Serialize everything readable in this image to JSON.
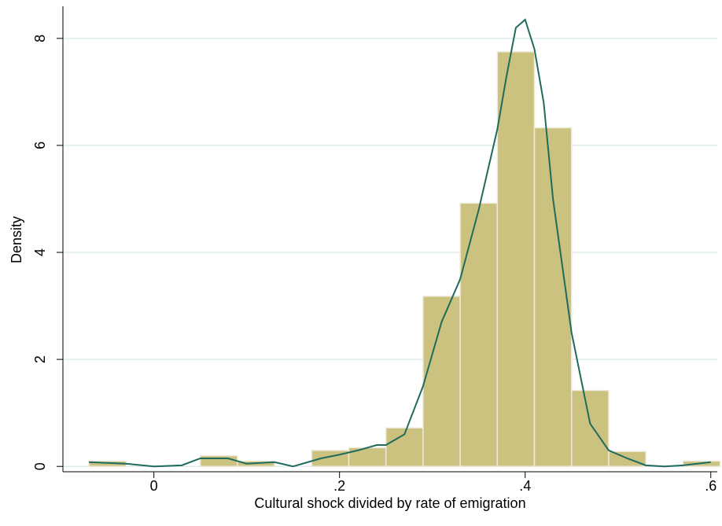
{
  "chart_data": {
    "type": "histogram",
    "xlabel": "Cultural shock divided by rate of emigration",
    "ylabel": "Density",
    "bins": [
      -0.07,
      -0.03,
      0.01,
      0.05,
      0.09,
      0.13,
      0.17,
      0.21,
      0.25,
      0.29,
      0.33,
      0.37,
      0.41,
      0.45,
      0.49,
      0.53,
      0.57,
      0.61
    ],
    "values": [
      0.1,
      0,
      0,
      0.2,
      0.1,
      0,
      0.3,
      0.35,
      0.72,
      3.18,
      4.92,
      7.75,
      6.33,
      1.42,
      0.28,
      0,
      0.1
    ],
    "color": "#cbc27f",
    "density_line": {
      "color": "#1f6b5d",
      "x": [
        -0.07,
        -0.03,
        0,
        0.03,
        0.05,
        0.08,
        0.1,
        0.13,
        0.15,
        0.18,
        0.2,
        0.22,
        0.24,
        0.25,
        0.27,
        0.29,
        0.31,
        0.33,
        0.35,
        0.37,
        0.38,
        0.39,
        0.4,
        0.41,
        0.42,
        0.43,
        0.45,
        0.47,
        0.49,
        0.51,
        0.53,
        0.55,
        0.57,
        0.6
      ],
      "values": [
        0.08,
        0.05,
        0,
        0.02,
        0.15,
        0.15,
        0.05,
        0.08,
        0,
        0.15,
        0.22,
        0.3,
        0.4,
        0.4,
        0.6,
        1.5,
        2.7,
        3.5,
        4.8,
        6.3,
        7.3,
        8.2,
        8.35,
        7.8,
        6.8,
        5.0,
        2.5,
        0.8,
        0.3,
        0.15,
        0.02,
        0,
        0.02,
        0.08
      ]
    },
    "xlim": [
      -0.098,
      0.607
    ],
    "ylim": [
      -0.1,
      8.6
    ],
    "xticks": [
      0,
      {
        "value": 0.2,
        "label": ".2"
      },
      {
        "value": 0.4,
        "label": ".4"
      },
      {
        "value": 0.6,
        "label": ".6"
      }
    ],
    "yticks": [
      0,
      2,
      4,
      6,
      8
    ],
    "grid": true
  }
}
